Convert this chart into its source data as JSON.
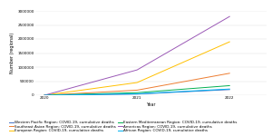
{
  "title": "",
  "xlabel": "Year",
  "ylabel": "Number (regional)",
  "xlim": [
    2019.9,
    2022.4
  ],
  "ylim": [
    0,
    3000000
  ],
  "yticks": [
    0,
    500000,
    1000000,
    1500000,
    2000000,
    2500000,
    3000000
  ],
  "ytick_labels": [
    "0",
    "500000",
    "1000000",
    "1500000",
    "2000000",
    "2500000",
    "3000000"
  ],
  "xticks": [
    2020,
    2021,
    2022
  ],
  "series": [
    {
      "label": "Western Pacific Region: COVID-19, cumulative deaths",
      "color": "#4472C4",
      "linestyle": "-",
      "linewidth": 0.7,
      "data_x": [
        2020,
        2021,
        2022
      ],
      "data_y": [
        0,
        40000,
        200000
      ]
    },
    {
      "label": "Southeast Asian Region: COVID-19, cumulative deaths",
      "color": "#ED7D31",
      "linestyle": "-",
      "linewidth": 0.7,
      "data_x": [
        2020,
        2021,
        2022
      ],
      "data_y": [
        0,
        180000,
        780000
      ]
    },
    {
      "label": "European Region: COVID-19, cumulative deaths",
      "color": "#FFC000",
      "linestyle": "-",
      "linewidth": 0.7,
      "data_x": [
        2020,
        2021,
        2022
      ],
      "data_y": [
        0,
        450000,
        1900000
      ]
    },
    {
      "label": "Eastern Mediterranean Region: COVID-19, cumulative deaths",
      "color": "#00B050",
      "linestyle": "-",
      "linewidth": 0.7,
      "data_x": [
        2020,
        2021,
        2022
      ],
      "data_y": [
        0,
        90000,
        340000
      ]
    },
    {
      "label": "Americas Region: COVID-19, cumulative deaths",
      "color": "#9B59B6",
      "linestyle": "-",
      "linewidth": 0.7,
      "data_x": [
        2020,
        2021,
        2022
      ],
      "data_y": [
        0,
        900000,
        2800000
      ]
    },
    {
      "label": "African Region: COVID-19, cumulative deaths",
      "color": "#00B0F0",
      "linestyle": "-",
      "linewidth": 0.7,
      "data_x": [
        2020,
        2021,
        2022
      ],
      "data_y": [
        0,
        50000,
        220000
      ]
    }
  ],
  "legend_fontsize": 3.0,
  "axis_label_fontsize": 3.5,
  "tick_fontsize": 3.0,
  "background_color": "#ffffff",
  "grid_color": "#dddddd"
}
